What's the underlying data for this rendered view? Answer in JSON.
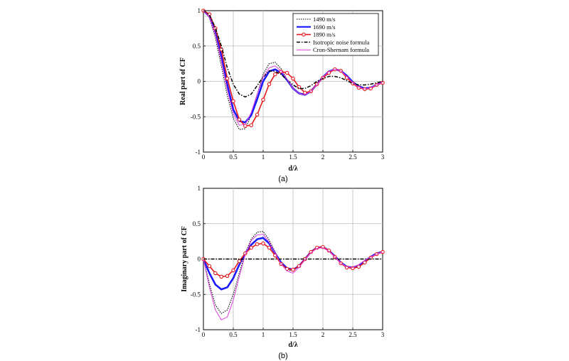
{
  "figure": {
    "captions": [
      "(a)",
      "(b)"
    ]
  },
  "styles": {
    "1490 m/s": {
      "color": "#000000",
      "dash": "1.5,1.5",
      "width": 1.1,
      "marker": false
    },
    "1690 m/s": {
      "color": "#1a1aff",
      "dash": "",
      "width": 2.6,
      "marker": false
    },
    "1890 m/s": {
      "color": "#e8191c",
      "dash": "",
      "width": 1.6,
      "marker": true
    },
    "Isotropic noise formula": {
      "color": "#000000",
      "dash": "5,2,1.5,2",
      "width": 1.5,
      "marker": false
    },
    "Cron-Shernam formula": {
      "color": "#e040e0",
      "dash": "",
      "width": 1.0,
      "marker": false
    }
  },
  "chart_data": [
    {
      "type": "line",
      "caption": "(a)",
      "title": "",
      "xlabel": "d/λ",
      "ylabel": "Real part of CF",
      "xlim": [
        0,
        3
      ],
      "ylim": [
        -1,
        1
      ],
      "xticks": [
        0,
        0.5,
        1,
        1.5,
        2,
        2.5,
        3
      ],
      "yticks": [
        -1,
        -0.5,
        0,
        0.5,
        1
      ],
      "xtick_labels": [
        "0",
        "0.5",
        "1",
        "1.5",
        "2",
        "2.5",
        "3"
      ],
      "ytick_labels": [
        "-1",
        "-0.5",
        "0",
        "0.5",
        "1"
      ],
      "grid": true,
      "legend_position": "top-right",
      "legend": [
        "1490 m/s",
        "1690 m/s",
        "1890 m/s",
        "Isotropic noise formula",
        "Cron-Shernam formula"
      ],
      "series": [
        {
          "name": "1490 m/s",
          "x": [
            0,
            0.1,
            0.2,
            0.3,
            0.4,
            0.5,
            0.6,
            0.7,
            0.8,
            0.9,
            1.0,
            1.1,
            1.2,
            1.3,
            1.4,
            1.5,
            1.6,
            1.7,
            1.8,
            1.9,
            2.0,
            2.1,
            2.2,
            2.3,
            2.4,
            2.5,
            2.6,
            2.7,
            2.8,
            2.9,
            3.0
          ],
          "y": [
            1,
            0.9,
            0.62,
            0.22,
            -0.2,
            -0.52,
            -0.68,
            -0.67,
            -0.48,
            -0.18,
            0.1,
            0.25,
            0.27,
            0.18,
            0.03,
            -0.1,
            -0.16,
            -0.18,
            -0.14,
            -0.05,
            0.06,
            0.14,
            0.17,
            0.15,
            0.06,
            -0.03,
            -0.09,
            -0.11,
            -0.09,
            -0.05,
            -0.01
          ]
        },
        {
          "name": "1690 m/s",
          "x": [
            0,
            0.1,
            0.2,
            0.3,
            0.4,
            0.5,
            0.6,
            0.7,
            0.8,
            0.9,
            1.0,
            1.1,
            1.2,
            1.3,
            1.4,
            1.5,
            1.6,
            1.7,
            1.8,
            1.9,
            2.0,
            2.1,
            2.2,
            2.3,
            2.4,
            2.5,
            2.6,
            2.7,
            2.8,
            2.9,
            3.0
          ],
          "y": [
            1,
            0.92,
            0.7,
            0.35,
            -0.05,
            -0.4,
            -0.56,
            -0.58,
            -0.48,
            -0.25,
            0,
            0.14,
            0.17,
            0.12,
            0.02,
            -0.1,
            -0.17,
            -0.19,
            -0.14,
            -0.04,
            0.06,
            0.14,
            0.17,
            0.15,
            0.08,
            -0.01,
            -0.07,
            -0.1,
            -0.09,
            -0.05,
            -0.01
          ]
        },
        {
          "name": "1890 m/s",
          "x": [
            0,
            0.1,
            0.2,
            0.3,
            0.4,
            0.5,
            0.6,
            0.7,
            0.8,
            0.9,
            1.0,
            1.1,
            1.2,
            1.3,
            1.4,
            1.5,
            1.6,
            1.7,
            1.8,
            1.9,
            2.0,
            2.1,
            2.2,
            2.3,
            2.4,
            2.5,
            2.6,
            2.7,
            2.8,
            2.9,
            3.0
          ],
          "y": [
            1,
            0.95,
            0.75,
            0.45,
            0.04,
            -0.28,
            -0.54,
            -0.63,
            -0.62,
            -0.47,
            -0.26,
            -0.04,
            0.1,
            0.14,
            0.12,
            0.04,
            -0.08,
            -0.16,
            -0.14,
            -0.04,
            0.05,
            0.12,
            0.17,
            0.15,
            0.05,
            -0.03,
            -0.09,
            -0.11,
            -0.1,
            -0.05,
            -0.02
          ],
          "markers": true
        },
        {
          "name": "Isotropic noise formula",
          "x": [
            0,
            0.1,
            0.2,
            0.3,
            0.4,
            0.5,
            0.6,
            0.7,
            0.8,
            0.9,
            1.0,
            1.1,
            1.2,
            1.3,
            1.4,
            1.5,
            1.6,
            1.7,
            1.8,
            1.9,
            2.0,
            2.1,
            2.2,
            2.3,
            2.4,
            2.5,
            2.6,
            2.7,
            2.8,
            2.9,
            3.0
          ],
          "y": [
            1,
            0.94,
            0.76,
            0.5,
            0.19,
            -0.04,
            -0.18,
            -0.22,
            -0.18,
            -0.06,
            0.06,
            0.15,
            0.14,
            0.1,
            0.02,
            -0.05,
            -0.1,
            -0.1,
            -0.06,
            0,
            0.04,
            0.07,
            0.07,
            0.05,
            0.01,
            -0.03,
            -0.05,
            -0.05,
            -0.04,
            -0.02,
            0
          ]
        },
        {
          "name": "Cron-Shernam formula",
          "x": [
            0,
            0.1,
            0.2,
            0.3,
            0.4,
            0.5,
            0.6,
            0.7,
            0.8,
            0.9,
            1.0,
            1.1,
            1.2,
            1.3,
            1.4,
            1.5,
            1.6,
            1.7,
            1.8,
            1.9,
            2.0,
            2.1,
            2.2,
            2.3,
            2.4,
            2.5,
            2.6,
            2.7,
            2.8,
            2.9,
            3.0
          ],
          "y": [
            1,
            0.91,
            0.66,
            0.29,
            -0.12,
            -0.46,
            -0.62,
            -0.61,
            -0.44,
            -0.18,
            0.06,
            0.19,
            0.22,
            0.15,
            0.03,
            -0.1,
            -0.17,
            -0.19,
            -0.14,
            -0.05,
            0.06,
            0.14,
            0.17,
            0.15,
            0.07,
            -0.02,
            -0.08,
            -0.11,
            -0.09,
            -0.05,
            -0.01
          ]
        }
      ]
    },
    {
      "type": "line",
      "caption": "(b)",
      "title": "",
      "xlabel": "d/λ",
      "ylabel": "Imaginary part of CF",
      "xlim": [
        0,
        3
      ],
      "ylim": [
        -1,
        1
      ],
      "xticks": [
        0,
        0.5,
        1,
        1.5,
        2,
        2.5,
        3
      ],
      "yticks": [
        -1,
        -0.5,
        0,
        0.5,
        1
      ],
      "xtick_labels": [
        "0",
        "0.5",
        "1",
        "1.5",
        "2",
        "2.5",
        "3"
      ],
      "ytick_labels": [
        "-1",
        "-0.5",
        "0",
        "0.5",
        "1"
      ],
      "grid": true,
      "legend_position": "none",
      "series": [
        {
          "name": "1490 m/s",
          "x": [
            0,
            0.1,
            0.2,
            0.3,
            0.4,
            0.5,
            0.6,
            0.7,
            0.8,
            0.9,
            1.0,
            1.1,
            1.2,
            1.3,
            1.4,
            1.5,
            1.6,
            1.7,
            1.8,
            1.9,
            2.0,
            2.1,
            2.2,
            2.3,
            2.4,
            2.5,
            2.6,
            2.7,
            2.8,
            2.9,
            3.0
          ],
          "y": [
            0,
            -0.35,
            -0.65,
            -0.77,
            -0.72,
            -0.5,
            -0.2,
            0.08,
            0.28,
            0.38,
            0.39,
            0.27,
            0.1,
            -0.05,
            -0.15,
            -0.17,
            -0.1,
            0,
            0.1,
            0.16,
            0.17,
            0.12,
            0.04,
            -0.06,
            -0.11,
            -0.12,
            -0.09,
            -0.03,
            0.03,
            0.08,
            0.1
          ]
        },
        {
          "name": "1690 m/s",
          "x": [
            0,
            0.1,
            0.2,
            0.3,
            0.4,
            0.5,
            0.6,
            0.7,
            0.8,
            0.9,
            1.0,
            1.1,
            1.2,
            1.3,
            1.4,
            1.5,
            1.6,
            1.7,
            1.8,
            1.9,
            2.0,
            2.1,
            2.2,
            2.3,
            2.4,
            2.5,
            2.6,
            2.7,
            2.8,
            2.9,
            3.0
          ],
          "y": [
            0,
            -0.2,
            -0.36,
            -0.43,
            -0.4,
            -0.27,
            -0.08,
            0.08,
            0.2,
            0.28,
            0.3,
            0.22,
            0.08,
            -0.05,
            -0.13,
            -0.15,
            -0.1,
            0,
            0.1,
            0.16,
            0.17,
            0.12,
            0.04,
            -0.05,
            -0.11,
            -0.12,
            -0.09,
            -0.03,
            0.03,
            0.08,
            0.1
          ]
        },
        {
          "name": "1890 m/s",
          "x": [
            0,
            0.1,
            0.2,
            0.3,
            0.4,
            0.5,
            0.6,
            0.7,
            0.8,
            0.9,
            1.0,
            1.1,
            1.2,
            1.3,
            1.4,
            1.5,
            1.6,
            1.7,
            1.8,
            1.9,
            2.0,
            2.1,
            2.2,
            2.3,
            2.4,
            2.5,
            2.6,
            2.7,
            2.8,
            2.9,
            3.0
          ],
          "y": [
            0,
            -0.1,
            -0.2,
            -0.25,
            -0.24,
            -0.16,
            -0.03,
            0.08,
            0.16,
            0.21,
            0.22,
            0.16,
            0.05,
            -0.07,
            -0.14,
            -0.15,
            -0.1,
            0,
            0.1,
            0.16,
            0.17,
            0.12,
            0.03,
            -0.06,
            -0.12,
            -0.13,
            -0.11,
            -0.05,
            0.02,
            0.07,
            0.1
          ],
          "markers": true
        },
        {
          "name": "Isotropic noise formula",
          "x": [
            0,
            3
          ],
          "y": [
            0,
            0
          ]
        },
        {
          "name": "Cron-Shernam formula",
          "x": [
            0,
            0.1,
            0.2,
            0.3,
            0.4,
            0.5,
            0.6,
            0.7,
            0.8,
            0.9,
            1.0,
            1.1,
            1.2,
            1.3,
            1.4,
            1.5,
            1.6,
            1.7,
            1.8,
            1.9,
            2.0,
            2.1,
            2.2,
            2.3,
            2.4,
            2.5,
            2.6,
            2.7,
            2.8,
            2.9,
            3.0
          ],
          "y": [
            0,
            -0.4,
            -0.72,
            -0.86,
            -0.82,
            -0.58,
            -0.25,
            0.06,
            0.26,
            0.34,
            0.35,
            0.24,
            0.08,
            -0.07,
            -0.17,
            -0.2,
            -0.12,
            -0.01,
            0.09,
            0.15,
            0.16,
            0.11,
            0.03,
            -0.06,
            -0.11,
            -0.12,
            -0.08,
            -0.02,
            0.03,
            0.07,
            0.1
          ]
        }
      ]
    }
  ]
}
